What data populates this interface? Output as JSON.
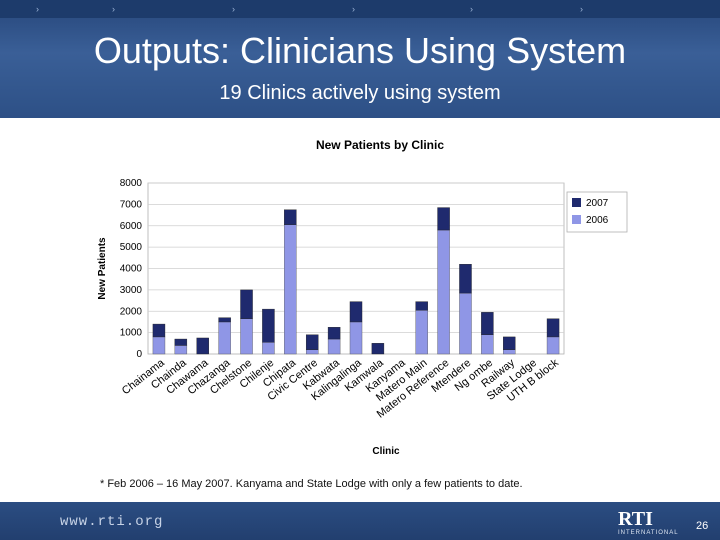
{
  "slide": {
    "title": "Outputs: Clinicians Using System",
    "subtitle": "19 Clinics actively using system",
    "footnote": "* Feb 2006 – 16 May 2007. Kanyama and State Lodge with only a few patients to date.",
    "footer_url": "www.rti.org",
    "logo_text": "RTI",
    "logo_subtext": "INTERNATIONAL",
    "page_number": "26"
  },
  "colors": {
    "header_bg": "#2d5086",
    "series_2007": "#1f2a6e",
    "series_2006": "#8f96e6"
  },
  "chart_data": {
    "type": "bar",
    "stacked": true,
    "title": "New Patients by Clinic",
    "xlabel": "Clinic",
    "ylabel": "New Patients",
    "ylim": [
      0,
      8000
    ],
    "yticks": [
      "0",
      "1000",
      "2000",
      "3000",
      "4000",
      "5000",
      "6000",
      "7000",
      "8000"
    ],
    "grid": true,
    "legend_position": "top-right",
    "categories": [
      "Chainama",
      "Chainda",
      "Chawama",
      "Chazanga",
      "Chelstone",
      "Chilenje",
      "Chipata",
      "Civic Centre",
      "Kabwata",
      "Kalingalinga",
      "Kamwala",
      "Kanyama",
      "Matero Main",
      "Matero Reference",
      "Mtendere",
      "Ng ombe",
      "Railway",
      "State Lodge",
      "UTH B block"
    ],
    "series": [
      {
        "name": "2006",
        "values": [
          800,
          400,
          0,
          1500,
          1650,
          550,
          6050,
          200,
          700,
          1500,
          0,
          0,
          2050,
          5800,
          2850,
          900,
          200,
          0,
          800
        ]
      },
      {
        "name": "2007",
        "values": [
          600,
          300,
          750,
          200,
          1350,
          1550,
          700,
          700,
          550,
          950,
          500,
          0,
          400,
          1050,
          1350,
          1050,
          600,
          0,
          850
        ]
      }
    ]
  }
}
